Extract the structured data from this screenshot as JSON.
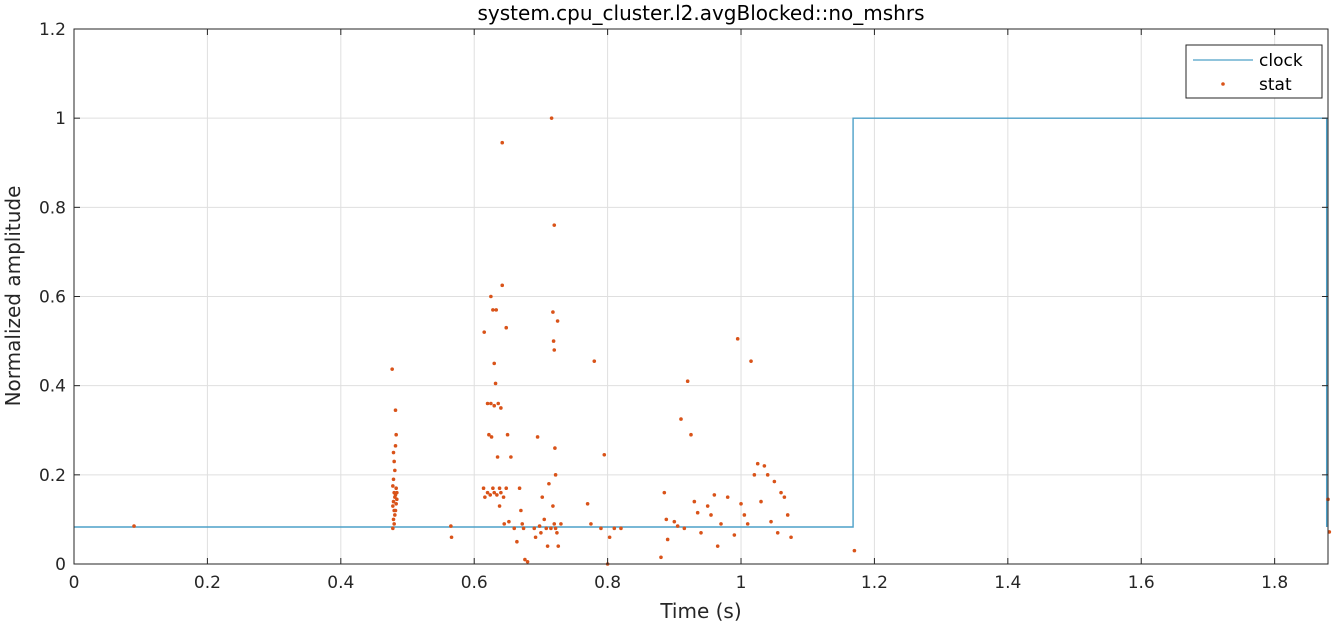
{
  "chart_data": {
    "type": "line",
    "title": "system.cpu_cluster.l2.avgBlocked::no_mshrs",
    "xlabel": "Time (s)",
    "ylabel": "Normalized amplitude",
    "xlim": [
      0,
      1.88
    ],
    "ylim": [
      0,
      1.2
    ],
    "xticks": [
      0,
      0.2,
      0.4,
      0.6,
      0.8,
      1,
      1.2,
      1.4,
      1.6,
      1.8
    ],
    "xtick_labels": [
      "0",
      "0.2",
      "0.4",
      "0.6",
      "0.8",
      "1",
      "1.2",
      "1.4",
      "1.6",
      "1.8"
    ],
    "yticks": [
      0,
      0.2,
      0.4,
      0.6,
      0.8,
      1,
      1.2
    ],
    "ytick_labels": [
      "0",
      "0.2",
      "0.4",
      "0.6",
      "0.8",
      "1",
      "1.2"
    ],
    "grid": true,
    "legend_position": "top-right",
    "series": [
      {
        "name": "clock",
        "type": "line",
        "color": "#4DA0C8",
        "x": [
          0,
          1.168,
          1.168,
          1.878,
          1.878
        ],
        "y": [
          0.083,
          0.083,
          1.0,
          1.0,
          0.083
        ]
      },
      {
        "name": "stat",
        "type": "scatter",
        "color": "#D95319",
        "points": [
          [
            0.09,
            0.085
          ],
          [
            0.477,
            0.437
          ],
          [
            0.479,
            0.25
          ],
          [
            0.48,
            0.23
          ],
          [
            0.481,
            0.21
          ],
          [
            0.479,
            0.19
          ],
          [
            0.478,
            0.175
          ],
          [
            0.48,
            0.16
          ],
          [
            0.481,
            0.15
          ],
          [
            0.479,
            0.14
          ],
          [
            0.478,
            0.13
          ],
          [
            0.48,
            0.12
          ],
          [
            0.481,
            0.11
          ],
          [
            0.479,
            0.1
          ],
          [
            0.48,
            0.09
          ],
          [
            0.478,
            0.08
          ],
          [
            0.482,
            0.345
          ],
          [
            0.483,
            0.29
          ],
          [
            0.482,
            0.265
          ],
          [
            0.483,
            0.17
          ],
          [
            0.482,
            0.155
          ],
          [
            0.483,
            0.135
          ],
          [
            0.482,
            0.12
          ],
          [
            0.484,
            0.145
          ],
          [
            0.484,
            0.16
          ],
          [
            0.565,
            0.085
          ],
          [
            0.566,
            0.06
          ],
          [
            0.615,
            0.52
          ],
          [
            0.614,
            0.17
          ],
          [
            0.616,
            0.15
          ],
          [
            0.62,
            0.36
          ],
          [
            0.622,
            0.29
          ],
          [
            0.62,
            0.16
          ],
          [
            0.624,
            0.155
          ],
          [
            0.628,
            0.17
          ],
          [
            0.63,
            0.16
          ],
          [
            0.634,
            0.155
          ],
          [
            0.638,
            0.17
          ],
          [
            0.64,
            0.16
          ],
          [
            0.644,
            0.15
          ],
          [
            0.648,
            0.17
          ],
          [
            0.625,
            0.6
          ],
          [
            0.628,
            0.57
          ],
          [
            0.633,
            0.57
          ],
          [
            0.63,
            0.45
          ],
          [
            0.632,
            0.405
          ],
          [
            0.625,
            0.36
          ],
          [
            0.63,
            0.355
          ],
          [
            0.636,
            0.36
          ],
          [
            0.626,
            0.285
          ],
          [
            0.635,
            0.24
          ],
          [
            0.638,
            0.13
          ],
          [
            0.642,
            0.945
          ],
          [
            0.642,
            0.625
          ],
          [
            0.64,
            0.35
          ],
          [
            0.648,
            0.53
          ],
          [
            0.65,
            0.29
          ],
          [
            0.652,
            0.095
          ],
          [
            0.645,
            0.09
          ],
          [
            0.655,
            0.24
          ],
          [
            0.66,
            0.08
          ],
          [
            0.664,
            0.05
          ],
          [
            0.668,
            0.17
          ],
          [
            0.67,
            0.12
          ],
          [
            0.672,
            0.09
          ],
          [
            0.674,
            0.08
          ],
          [
            0.676,
            0.01
          ],
          [
            0.68,
            0.005
          ],
          [
            0.69,
            0.08
          ],
          [
            0.692,
            0.06
          ],
          [
            0.695,
            0.285
          ],
          [
            0.698,
            0.085
          ],
          [
            0.7,
            0.07
          ],
          [
            0.702,
            0.15
          ],
          [
            0.705,
            0.1
          ],
          [
            0.708,
            0.08
          ],
          [
            0.71,
            0.04
          ],
          [
            0.712,
            0.18
          ],
          [
            0.715,
            0.08
          ],
          [
            0.716,
            1.0
          ],
          [
            0.718,
            0.565
          ],
          [
            0.72,
            0.76
          ],
          [
            0.719,
            0.5
          ],
          [
            0.72,
            0.48
          ],
          [
            0.721,
            0.26
          ],
          [
            0.722,
            0.2
          ],
          [
            0.72,
            0.09
          ],
          [
            0.722,
            0.08
          ],
          [
            0.724,
            0.07
          ],
          [
            0.725,
            0.545
          ],
          [
            0.718,
            0.13
          ],
          [
            0.726,
            0.04
          ],
          [
            0.73,
            0.09
          ],
          [
            0.77,
            0.135
          ],
          [
            0.775,
            0.09
          ],
          [
            0.78,
            0.455
          ],
          [
            0.79,
            0.08
          ],
          [
            0.795,
            0.245
          ],
          [
            0.8,
            0.0
          ],
          [
            0.803,
            0.06
          ],
          [
            0.81,
            0.08
          ],
          [
            0.82,
            0.08
          ],
          [
            0.88,
            0.015
          ],
          [
            0.885,
            0.16
          ],
          [
            0.888,
            0.1
          ],
          [
            0.89,
            0.055
          ],
          [
            0.9,
            0.095
          ],
          [
            0.905,
            0.085
          ],
          [
            0.91,
            0.325
          ],
          [
            0.915,
            0.08
          ],
          [
            0.92,
            0.41
          ],
          [
            0.925,
            0.29
          ],
          [
            0.93,
            0.14
          ],
          [
            0.935,
            0.115
          ],
          [
            0.94,
            0.07
          ],
          [
            0.95,
            0.13
          ],
          [
            0.955,
            0.11
          ],
          [
            0.96,
            0.155
          ],
          [
            0.965,
            0.04
          ],
          [
            0.97,
            0.09
          ],
          [
            0.98,
            0.15
          ],
          [
            0.99,
            0.065
          ],
          [
            0.995,
            0.505
          ],
          [
            1.0,
            0.135
          ],
          [
            1.005,
            0.11
          ],
          [
            1.01,
            0.09
          ],
          [
            1.015,
            0.455
          ],
          [
            1.02,
            0.2
          ],
          [
            1.025,
            0.225
          ],
          [
            1.03,
            0.14
          ],
          [
            1.035,
            0.22
          ],
          [
            1.04,
            0.2
          ],
          [
            1.045,
            0.095
          ],
          [
            1.05,
            0.185
          ],
          [
            1.055,
            0.07
          ],
          [
            1.06,
            0.16
          ],
          [
            1.065,
            0.15
          ],
          [
            1.07,
            0.11
          ],
          [
            1.075,
            0.06
          ],
          [
            1.17,
            0.03
          ],
          [
            1.88,
            0.145
          ],
          [
            1.882,
            0.072
          ]
        ]
      }
    ]
  }
}
